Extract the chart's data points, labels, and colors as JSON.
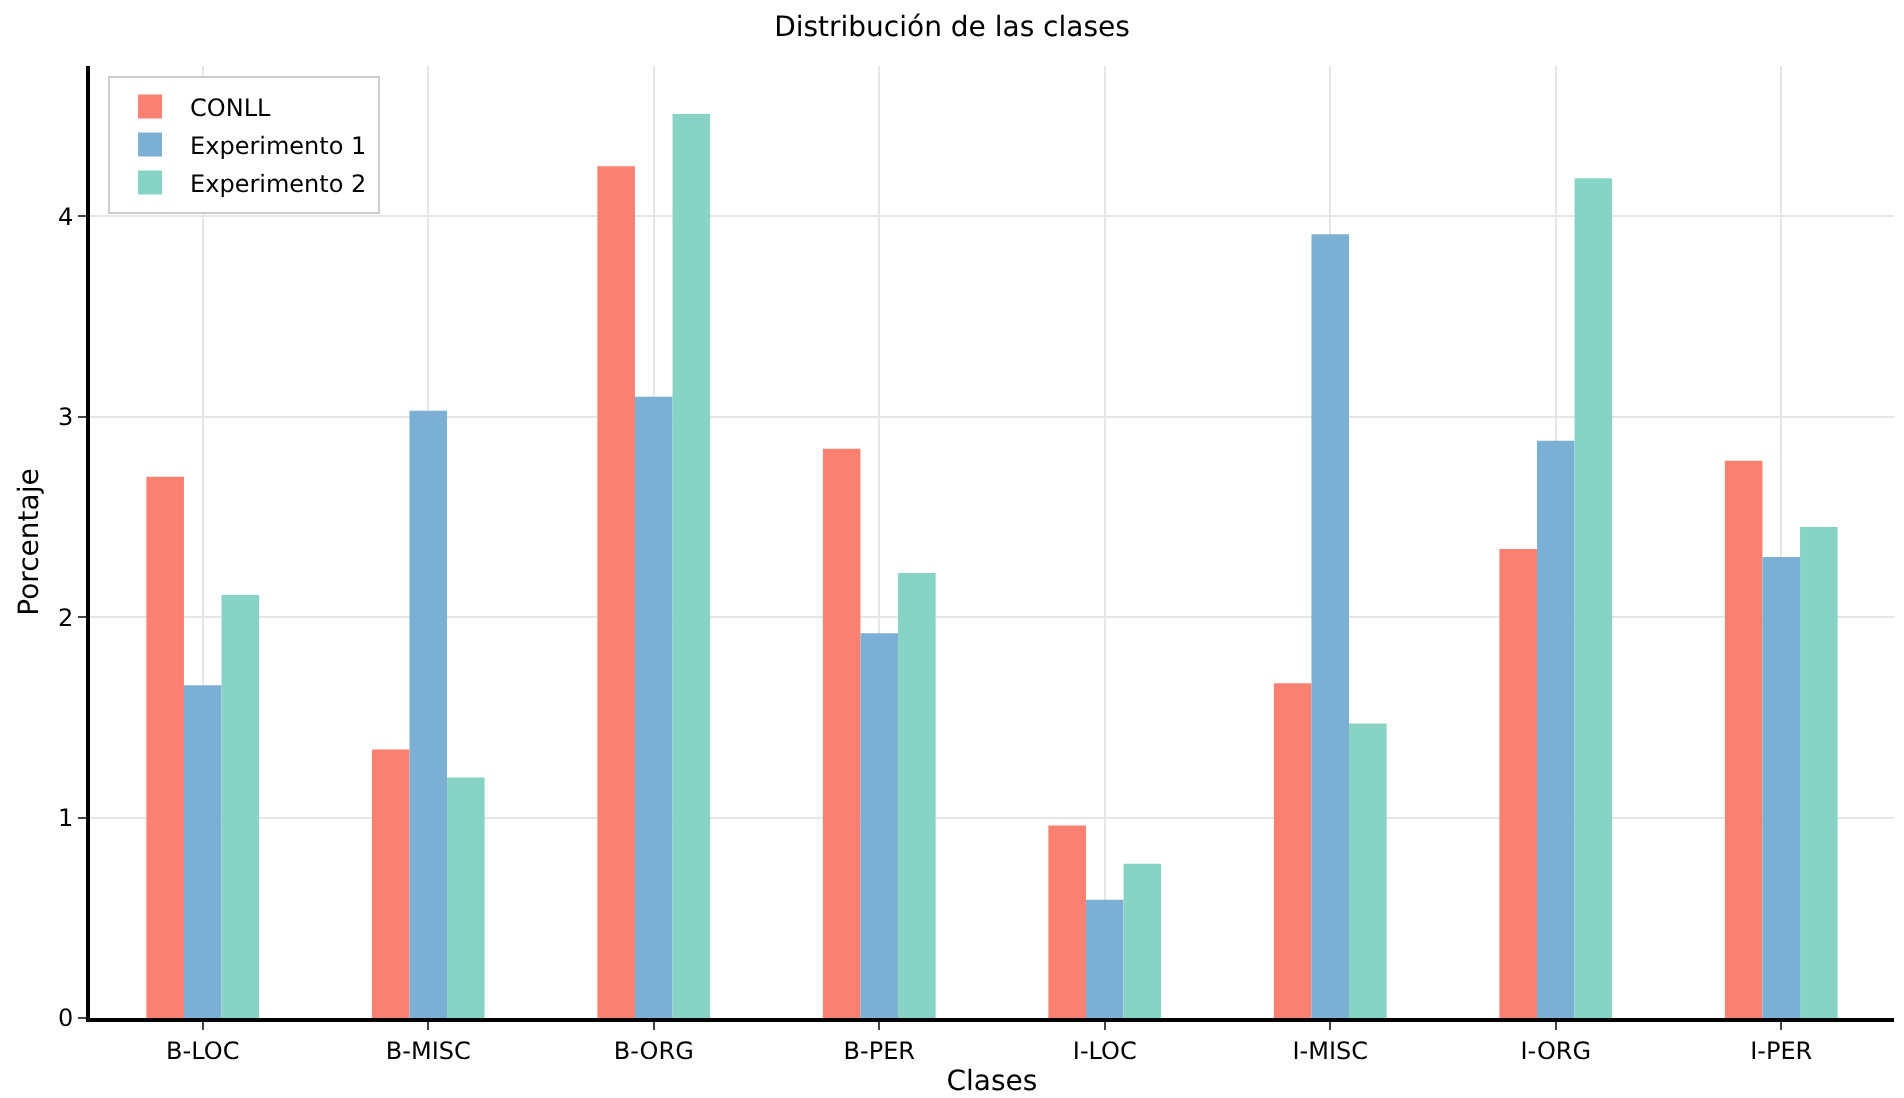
{
  "chart_data": {
    "type": "bar",
    "title": "Distribución de las clases",
    "xlabel": "Clases",
    "ylabel": "Porcentaje",
    "categories": [
      "B-LOC",
      "B-MISC",
      "B-ORG",
      "B-PER",
      "I-LOC",
      "I-MISC",
      "I-ORG",
      "I-PER"
    ],
    "series": [
      {
        "name": "CONLL",
        "color": "#fa8072",
        "values": [
          2.7,
          1.34,
          4.25,
          2.84,
          0.96,
          1.67,
          2.34,
          2.78
        ]
      },
      {
        "name": "Experimento 1",
        "color": "#7bafd4",
        "values": [
          1.66,
          3.03,
          3.1,
          1.92,
          0.59,
          3.91,
          2.88,
          2.3
        ]
      },
      {
        "name": "Experimento 2",
        "color": "#88d4c4",
        "values": [
          2.11,
          1.2,
          4.51,
          2.22,
          0.77,
          1.47,
          4.19,
          2.45
        ]
      }
    ],
    "ylim": [
      0,
      4.75
    ],
    "yticks": [
      0,
      1,
      2,
      3,
      4
    ],
    "grid": true,
    "legend": "top left"
  }
}
